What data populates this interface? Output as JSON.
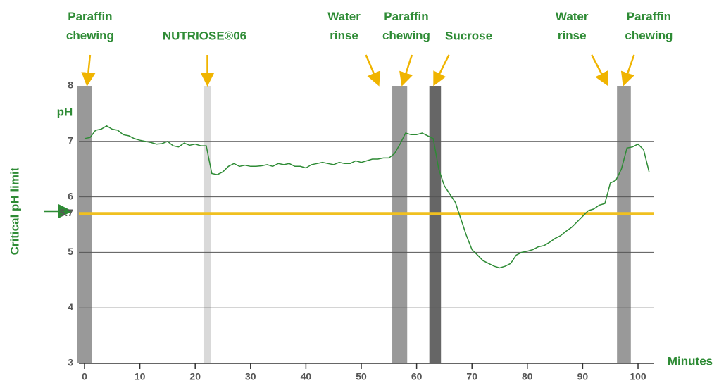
{
  "chart_data": {
    "type": "line",
    "ylabel": "pH",
    "xlabel": "Minutes",
    "color": "#2e8b35",
    "xlim": [
      -1.5,
      103
    ],
    "xticks": [
      0,
      10,
      20,
      30,
      40,
      50,
      60,
      70,
      80,
      90,
      100
    ],
    "ylim": [
      3,
      8
    ],
    "yticks": [
      3,
      4,
      5,
      5.7,
      6,
      7,
      8
    ],
    "grid": true,
    "threshold": {
      "value": 5.7,
      "label": "Critical pH limit",
      "color": "#f0c020"
    },
    "periods": [
      {
        "start": -1.3,
        "end": 1.4,
        "color": "#999999"
      },
      {
        "start": 21.5,
        "end": 22.9,
        "color": "#d9d9d9"
      },
      {
        "start": 55.6,
        "end": 58.3,
        "color": "#999999"
      },
      {
        "start": 62.3,
        "end": 64.4,
        "color": "#666666"
      },
      {
        "start": 96.2,
        "end": 98.7,
        "color": "#999999"
      }
    ],
    "annotations": [
      {
        "label": "Paraffin chewing",
        "x": 0.5
      },
      {
        "label": "NUTRIOSE®06",
        "x": 22.2
      },
      {
        "label": "Water rinse",
        "x": 53
      },
      {
        "label": "Paraffin chewing",
        "x": 57.5
      },
      {
        "label": "Sucrose",
        "x": 63.3
      },
      {
        "label": "Water rinse",
        "x": 94.3
      },
      {
        "label": "Paraffin chewing",
        "x": 97.5
      }
    ],
    "x": [
      0,
      1,
      2,
      3,
      4,
      5,
      6,
      7,
      8,
      9,
      10,
      11,
      12,
      13,
      14,
      15,
      16,
      17,
      18,
      19,
      20,
      21,
      22,
      23,
      24,
      25,
      26,
      27,
      28,
      29,
      30,
      31,
      32,
      33,
      34,
      35,
      36,
      37,
      38,
      39,
      40,
      41,
      42,
      43,
      44,
      45,
      46,
      47,
      48,
      49,
      50,
      51,
      52,
      53,
      54,
      55,
      56,
      57,
      58,
      59,
      60,
      61,
      62,
      63,
      64,
      65,
      66,
      67,
      68,
      69,
      70,
      71,
      72,
      73,
      74,
      75,
      76,
      77,
      78,
      79,
      80,
      81,
      82,
      83,
      84,
      85,
      86,
      87,
      88,
      89,
      90,
      91,
      92,
      93,
      94,
      95,
      96,
      97,
      98,
      99,
      100,
      101,
      102
    ],
    "values": [
      7.05,
      7.07,
      7.2,
      7.22,
      7.28,
      7.22,
      7.2,
      7.12,
      7.1,
      7.05,
      7.02,
      7.0,
      6.98,
      6.95,
      6.96,
      7.0,
      6.92,
      6.9,
      6.97,
      6.93,
      6.95,
      6.92,
      6.92,
      6.42,
      6.4,
      6.45,
      6.55,
      6.6,
      6.55,
      6.57,
      6.55,
      6.55,
      6.56,
      6.58,
      6.55,
      6.6,
      6.58,
      6.6,
      6.55,
      6.55,
      6.52,
      6.58,
      6.6,
      6.62,
      6.6,
      6.58,
      6.62,
      6.6,
      6.6,
      6.65,
      6.62,
      6.65,
      6.68,
      6.68,
      6.7,
      6.7,
      6.78,
      6.95,
      7.15,
      7.12,
      7.12,
      7.15,
      7.1,
      7.05,
      6.5,
      6.2,
      6.05,
      5.9,
      5.6,
      5.3,
      5.05,
      4.95,
      4.85,
      4.8,
      4.75,
      4.72,
      4.75,
      4.8,
      4.95,
      5.0,
      5.02,
      5.05,
      5.1,
      5.12,
      5.18,
      5.25,
      5.3,
      5.38,
      5.45,
      5.55,
      5.65,
      5.75,
      5.78,
      5.85,
      5.88,
      6.25,
      6.3,
      6.5,
      6.88,
      6.9,
      6.95,
      6.85,
      6.45
    ]
  }
}
